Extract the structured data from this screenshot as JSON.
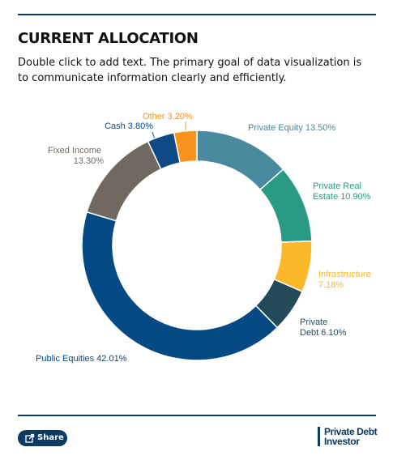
{
  "header": {
    "title": "CURRENT ALLOCATION",
    "subtitle": "Double click to add text. The primary goal of data visualization is to communicate information clearly and efficiently."
  },
  "chart_data": {
    "type": "donut",
    "categories": [
      "Private Equity",
      "Private Real Estate",
      "Infrastructure",
      "Private Debt",
      "Public Equities",
      "Fixed Income",
      "Cash",
      "Other"
    ],
    "values": [
      13.5,
      10.9,
      7.18,
      6.1,
      42.01,
      13.3,
      3.8,
      3.2
    ],
    "value_labels": [
      "13.50%",
      "10.90%",
      "7.18%",
      "6.10%",
      "42.01%",
      "13.30%",
      "3.80%",
      "3.20%"
    ],
    "colors": [
      "#4a8a9e",
      "#2a9a85",
      "#fbb829",
      "#244a5a",
      "#064a85",
      "#716960",
      "#0d4a86",
      "#f7941d"
    ]
  },
  "footer": {
    "share": "Share",
    "logo": [
      "Private Debt",
      "Investor"
    ]
  }
}
